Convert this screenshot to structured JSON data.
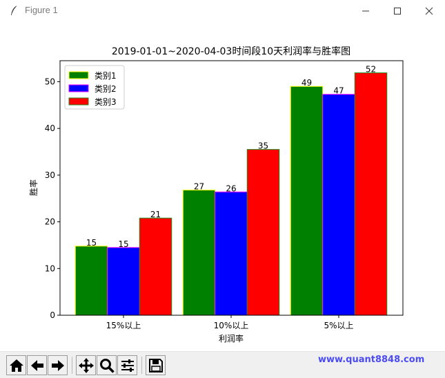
{
  "window": {
    "title": "Figure 1",
    "minimize_icon": "minimize-icon",
    "maximize_icon": "maximize-icon",
    "close_icon": "close-icon",
    "app_icon": "feather-icon"
  },
  "chart_data": {
    "type": "bar",
    "title": "2019-01-01~2020-04-03时间段10天利润率与胜率图",
    "xlabel": "利润率",
    "ylabel": "胜率",
    "categories": [
      "15%以上",
      "10%以上",
      "5%以上"
    ],
    "series": [
      {
        "name": "类别1",
        "values": [
          14.8,
          26.8,
          49
        ],
        "labels": [
          "15",
          "27",
          "49"
        ],
        "color": "#008000",
        "edge": "#ffff00"
      },
      {
        "name": "类别2",
        "values": [
          14.5,
          26.4,
          47.3
        ],
        "labels": [
          "15",
          "26",
          "47"
        ],
        "color": "#0000ff",
        "edge": "#ff00ff"
      },
      {
        "name": "类别3",
        "values": [
          20.8,
          35.5,
          51.9
        ],
        "labels": [
          "21",
          "35",
          "52"
        ],
        "color": "#ff0000",
        "edge": "#228b22"
      }
    ],
    "ylim": [
      0,
      54.5
    ],
    "yticks": [
      0,
      10,
      20,
      30,
      40,
      50
    ],
    "grid": false,
    "legend": "top-left"
  },
  "toolbar": {
    "buttons": [
      {
        "name": "home-button",
        "icon": "home-icon"
      },
      {
        "name": "back-button",
        "icon": "arrow-left-icon"
      },
      {
        "name": "forward-button",
        "icon": "arrow-right-icon"
      },
      {
        "name": "pan-button",
        "icon": "move-icon"
      },
      {
        "name": "zoom-button",
        "icon": "magnifier-icon"
      },
      {
        "name": "configure-button",
        "icon": "sliders-icon"
      },
      {
        "name": "save-button",
        "icon": "save-icon"
      }
    ],
    "watermark": "www.quant8848.com"
  }
}
